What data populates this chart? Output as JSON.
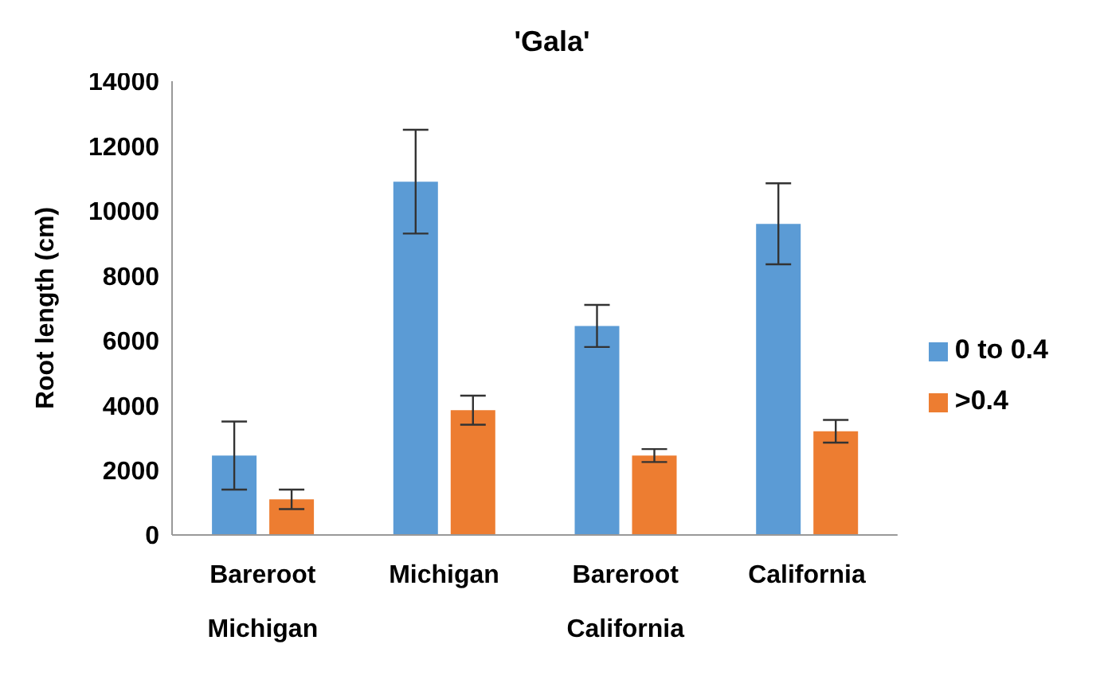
{
  "chart_data": {
    "type": "bar",
    "title": "'Gala'",
    "ylabel": "Root length (cm)",
    "categories": [
      "Bareroot Michigan",
      "Michigan",
      "Bareroot California",
      "California"
    ],
    "series": [
      {
        "name": "0 to 0.4",
        "color": "#5b9bd5",
        "values": [
          2450,
          10900,
          6450,
          9600
        ],
        "errors": [
          1050,
          1600,
          650,
          1250
        ]
      },
      {
        "name": ">0.4",
        "color": "#ed7d31",
        "values": [
          1100,
          3850,
          2450,
          3200
        ],
        "errors": [
          300,
          450,
          200,
          350
        ]
      }
    ],
    "ylim": [
      0,
      14000
    ],
    "yticks": [
      0,
      2000,
      4000,
      6000,
      8000,
      10000,
      12000,
      14000
    ],
    "grid": false,
    "legend": "right"
  }
}
